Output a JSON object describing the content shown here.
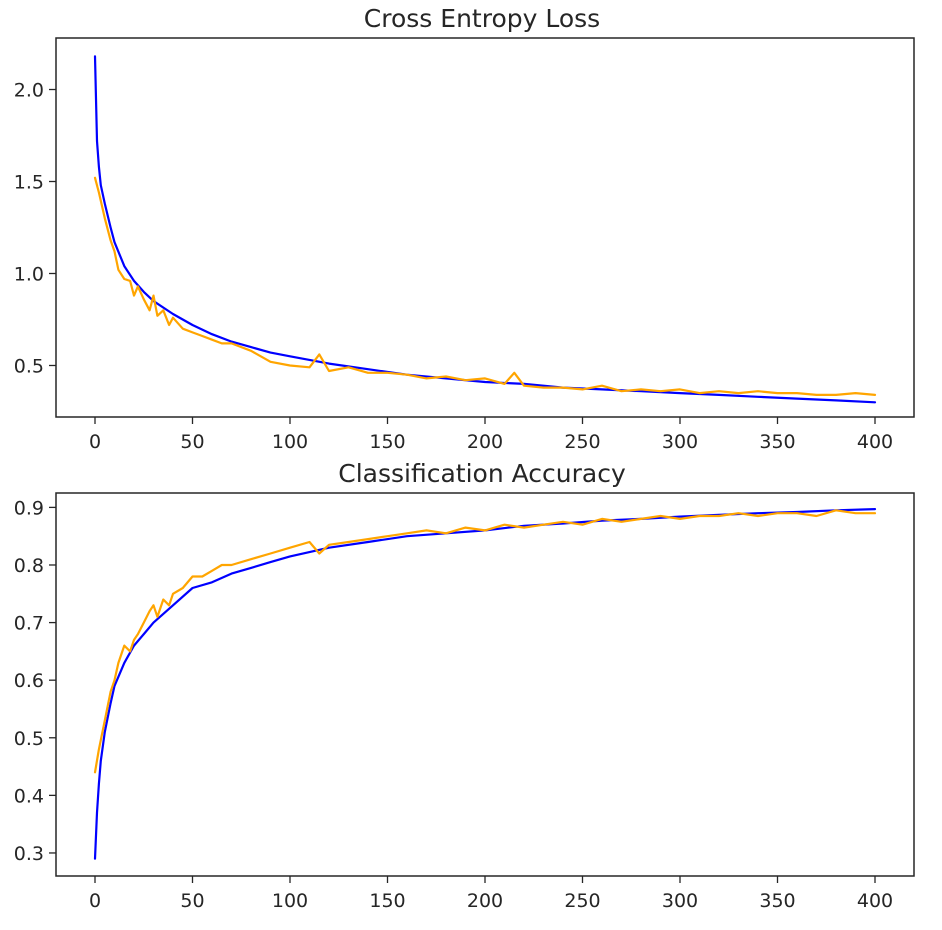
{
  "chart_data": [
    {
      "type": "line",
      "title": "Cross Entropy Loss",
      "xlabel": "",
      "ylabel": "",
      "xlim": [
        -20,
        420
      ],
      "ylim": [
        0.22,
        2.28
      ],
      "xticks": [
        0,
        50,
        100,
        150,
        200,
        250,
        300,
        350,
        400
      ],
      "yticks": [
        0.5,
        1.0,
        1.5,
        2.0
      ],
      "ytick_labels": [
        "0.5",
        "1.0",
        "1.5",
        "2.0"
      ],
      "grid": false,
      "legend": "none",
      "series": [
        {
          "color": "#0000ff",
          "x": [
            0,
            1,
            2,
            3,
            5,
            8,
            10,
            15,
            20,
            25,
            30,
            40,
            50,
            60,
            70,
            80,
            90,
            100,
            120,
            140,
            160,
            180,
            200,
            220,
            240,
            260,
            280,
            300,
            320,
            340,
            360,
            380,
            400
          ],
          "y": [
            2.18,
            1.72,
            1.58,
            1.48,
            1.38,
            1.25,
            1.17,
            1.04,
            0.96,
            0.9,
            0.85,
            0.78,
            0.72,
            0.67,
            0.63,
            0.6,
            0.57,
            0.55,
            0.51,
            0.48,
            0.45,
            0.43,
            0.41,
            0.4,
            0.38,
            0.37,
            0.36,
            0.35,
            0.34,
            0.33,
            0.32,
            0.31,
            0.3
          ]
        },
        {
          "color": "#ffa500",
          "x": [
            0,
            2,
            5,
            8,
            10,
            12,
            15,
            18,
            20,
            22,
            25,
            28,
            30,
            32,
            35,
            38,
            40,
            45,
            50,
            55,
            60,
            65,
            70,
            80,
            90,
            100,
            110,
            115,
            120,
            130,
            140,
            150,
            160,
            170,
            180,
            190,
            200,
            210,
            215,
            220,
            230,
            240,
            250,
            260,
            270,
            280,
            290,
            300,
            310,
            320,
            330,
            340,
            350,
            360,
            370,
            380,
            390,
            400
          ],
          "y": [
            1.52,
            1.44,
            1.3,
            1.18,
            1.12,
            1.02,
            0.97,
            0.96,
            0.88,
            0.93,
            0.86,
            0.8,
            0.88,
            0.77,
            0.8,
            0.72,
            0.76,
            0.7,
            0.68,
            0.66,
            0.64,
            0.62,
            0.62,
            0.58,
            0.52,
            0.5,
            0.49,
            0.56,
            0.47,
            0.49,
            0.46,
            0.46,
            0.45,
            0.43,
            0.44,
            0.42,
            0.43,
            0.4,
            0.46,
            0.39,
            0.38,
            0.38,
            0.37,
            0.39,
            0.36,
            0.37,
            0.36,
            0.37,
            0.35,
            0.36,
            0.35,
            0.36,
            0.35,
            0.35,
            0.34,
            0.34,
            0.35,
            0.34
          ]
        }
      ]
    },
    {
      "type": "line",
      "title": "Classification Accuracy",
      "xlabel": "",
      "ylabel": "",
      "xlim": [
        -20,
        420
      ],
      "ylim": [
        0.26,
        0.925
      ],
      "xticks": [
        0,
        50,
        100,
        150,
        200,
        250,
        300,
        350,
        400
      ],
      "yticks": [
        0.3,
        0.4,
        0.5,
        0.6,
        0.7,
        0.8,
        0.9
      ],
      "ytick_labels": [
        "0.3",
        "0.4",
        "0.5",
        "0.6",
        "0.7",
        "0.8",
        "0.9"
      ],
      "grid": false,
      "legend": "none",
      "series": [
        {
          "color": "#0000ff",
          "x": [
            0,
            1,
            2,
            3,
            5,
            8,
            10,
            15,
            20,
            25,
            30,
            40,
            50,
            60,
            70,
            80,
            90,
            100,
            120,
            140,
            160,
            180,
            200,
            220,
            240,
            260,
            280,
            300,
            320,
            340,
            360,
            380,
            400
          ],
          "y": [
            0.29,
            0.37,
            0.42,
            0.46,
            0.51,
            0.56,
            0.59,
            0.63,
            0.66,
            0.68,
            0.7,
            0.73,
            0.76,
            0.77,
            0.785,
            0.795,
            0.805,
            0.815,
            0.83,
            0.84,
            0.85,
            0.855,
            0.86,
            0.868,
            0.872,
            0.877,
            0.88,
            0.884,
            0.887,
            0.89,
            0.892,
            0.895,
            0.897
          ]
        },
        {
          "color": "#ffa500",
          "x": [
            0,
            2,
            5,
            8,
            10,
            12,
            15,
            18,
            20,
            22,
            25,
            28,
            30,
            32,
            35,
            38,
            40,
            45,
            50,
            55,
            60,
            65,
            70,
            80,
            90,
            100,
            110,
            115,
            120,
            130,
            140,
            150,
            160,
            170,
            180,
            190,
            200,
            210,
            220,
            230,
            240,
            250,
            260,
            270,
            280,
            290,
            300,
            310,
            320,
            330,
            340,
            350,
            360,
            370,
            380,
            390,
            400
          ],
          "y": [
            0.44,
            0.48,
            0.53,
            0.58,
            0.6,
            0.63,
            0.66,
            0.65,
            0.67,
            0.68,
            0.7,
            0.72,
            0.73,
            0.71,
            0.74,
            0.73,
            0.75,
            0.76,
            0.78,
            0.78,
            0.79,
            0.8,
            0.8,
            0.81,
            0.82,
            0.83,
            0.84,
            0.82,
            0.835,
            0.84,
            0.845,
            0.85,
            0.855,
            0.86,
            0.855,
            0.865,
            0.86,
            0.87,
            0.865,
            0.87,
            0.875,
            0.87,
            0.88,
            0.875,
            0.88,
            0.885,
            0.88,
            0.885,
            0.885,
            0.89,
            0.885,
            0.89,
            0.89,
            0.885,
            0.895,
            0.89,
            0.89
          ]
        }
      ]
    }
  ]
}
